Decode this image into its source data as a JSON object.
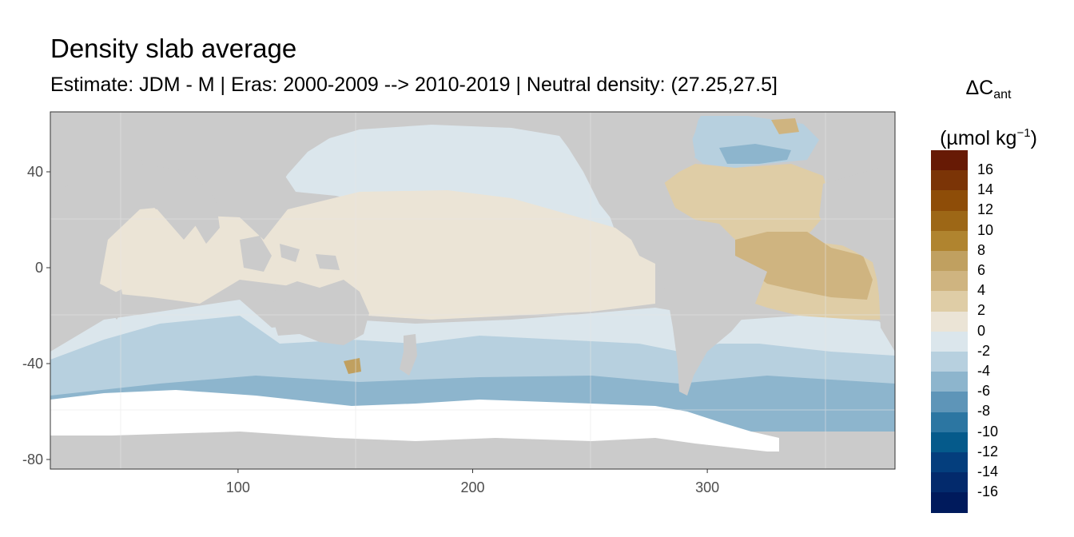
{
  "title": "Density slab average",
  "subtitle": "Estimate: JDM - M | Eras: 2000-2009 --> 2010-2019 | Neutral density: (27.25,27.5]",
  "legend": {
    "title_symbol": "ΔC",
    "title_subscript": "ant",
    "unit_prefix": "(µmol kg",
    "unit_exponent": "−1",
    "unit_suffix": ")",
    "bins": [
      {
        "label": "16",
        "color": "#671a05"
      },
      {
        "label": "14",
        "color": "#7b3406"
      },
      {
        "label": "12",
        "color": "#8e4d08"
      },
      {
        "label": "10",
        "color": "#9d6716"
      },
      {
        "label": "8",
        "color": "#b0842f"
      },
      {
        "label": "6",
        "color": "#c0a060"
      },
      {
        "label": "4",
        "color": "#cfb480"
      },
      {
        "label": "2",
        "color": "#dfcda6"
      },
      {
        "label": "0",
        "color": "#ebe4d6"
      },
      {
        "label": "-2",
        "color": "#dbe6ec"
      },
      {
        "label": "-4",
        "color": "#b7d0df"
      },
      {
        "label": "-6",
        "color": "#8db5cd"
      },
      {
        "label": "-8",
        "color": "#5e95b8"
      },
      {
        "label": "-10",
        "color": "#2c76a2"
      },
      {
        "label": "-12",
        "color": "#055a8b"
      },
      {
        "label": "-14",
        "color": "#043e7d"
      },
      {
        "label": "-16",
        "color": "#032a6c"
      },
      {
        "label": "",
        "color": "#001a5c"
      }
    ]
  },
  "axes": {
    "x_ticks": [
      {
        "value": 100,
        "label": "100"
      },
      {
        "value": 200,
        "label": "200"
      },
      {
        "value": 300,
        "label": "300"
      }
    ],
    "y_ticks": [
      {
        "value": 40,
        "label": "40"
      },
      {
        "value": 0,
        "label": "0"
      },
      {
        "value": -40,
        "label": "-40"
      },
      {
        "value": -80,
        "label": "-80"
      }
    ],
    "x_range": [
      20,
      380
    ],
    "y_range": [
      -84,
      65
    ]
  },
  "map_colors": {
    "land": "#cbcbcb",
    "no_data": "#ffffff",
    "panel_border": "#333333",
    "grid": "#e6e6e6"
  }
}
